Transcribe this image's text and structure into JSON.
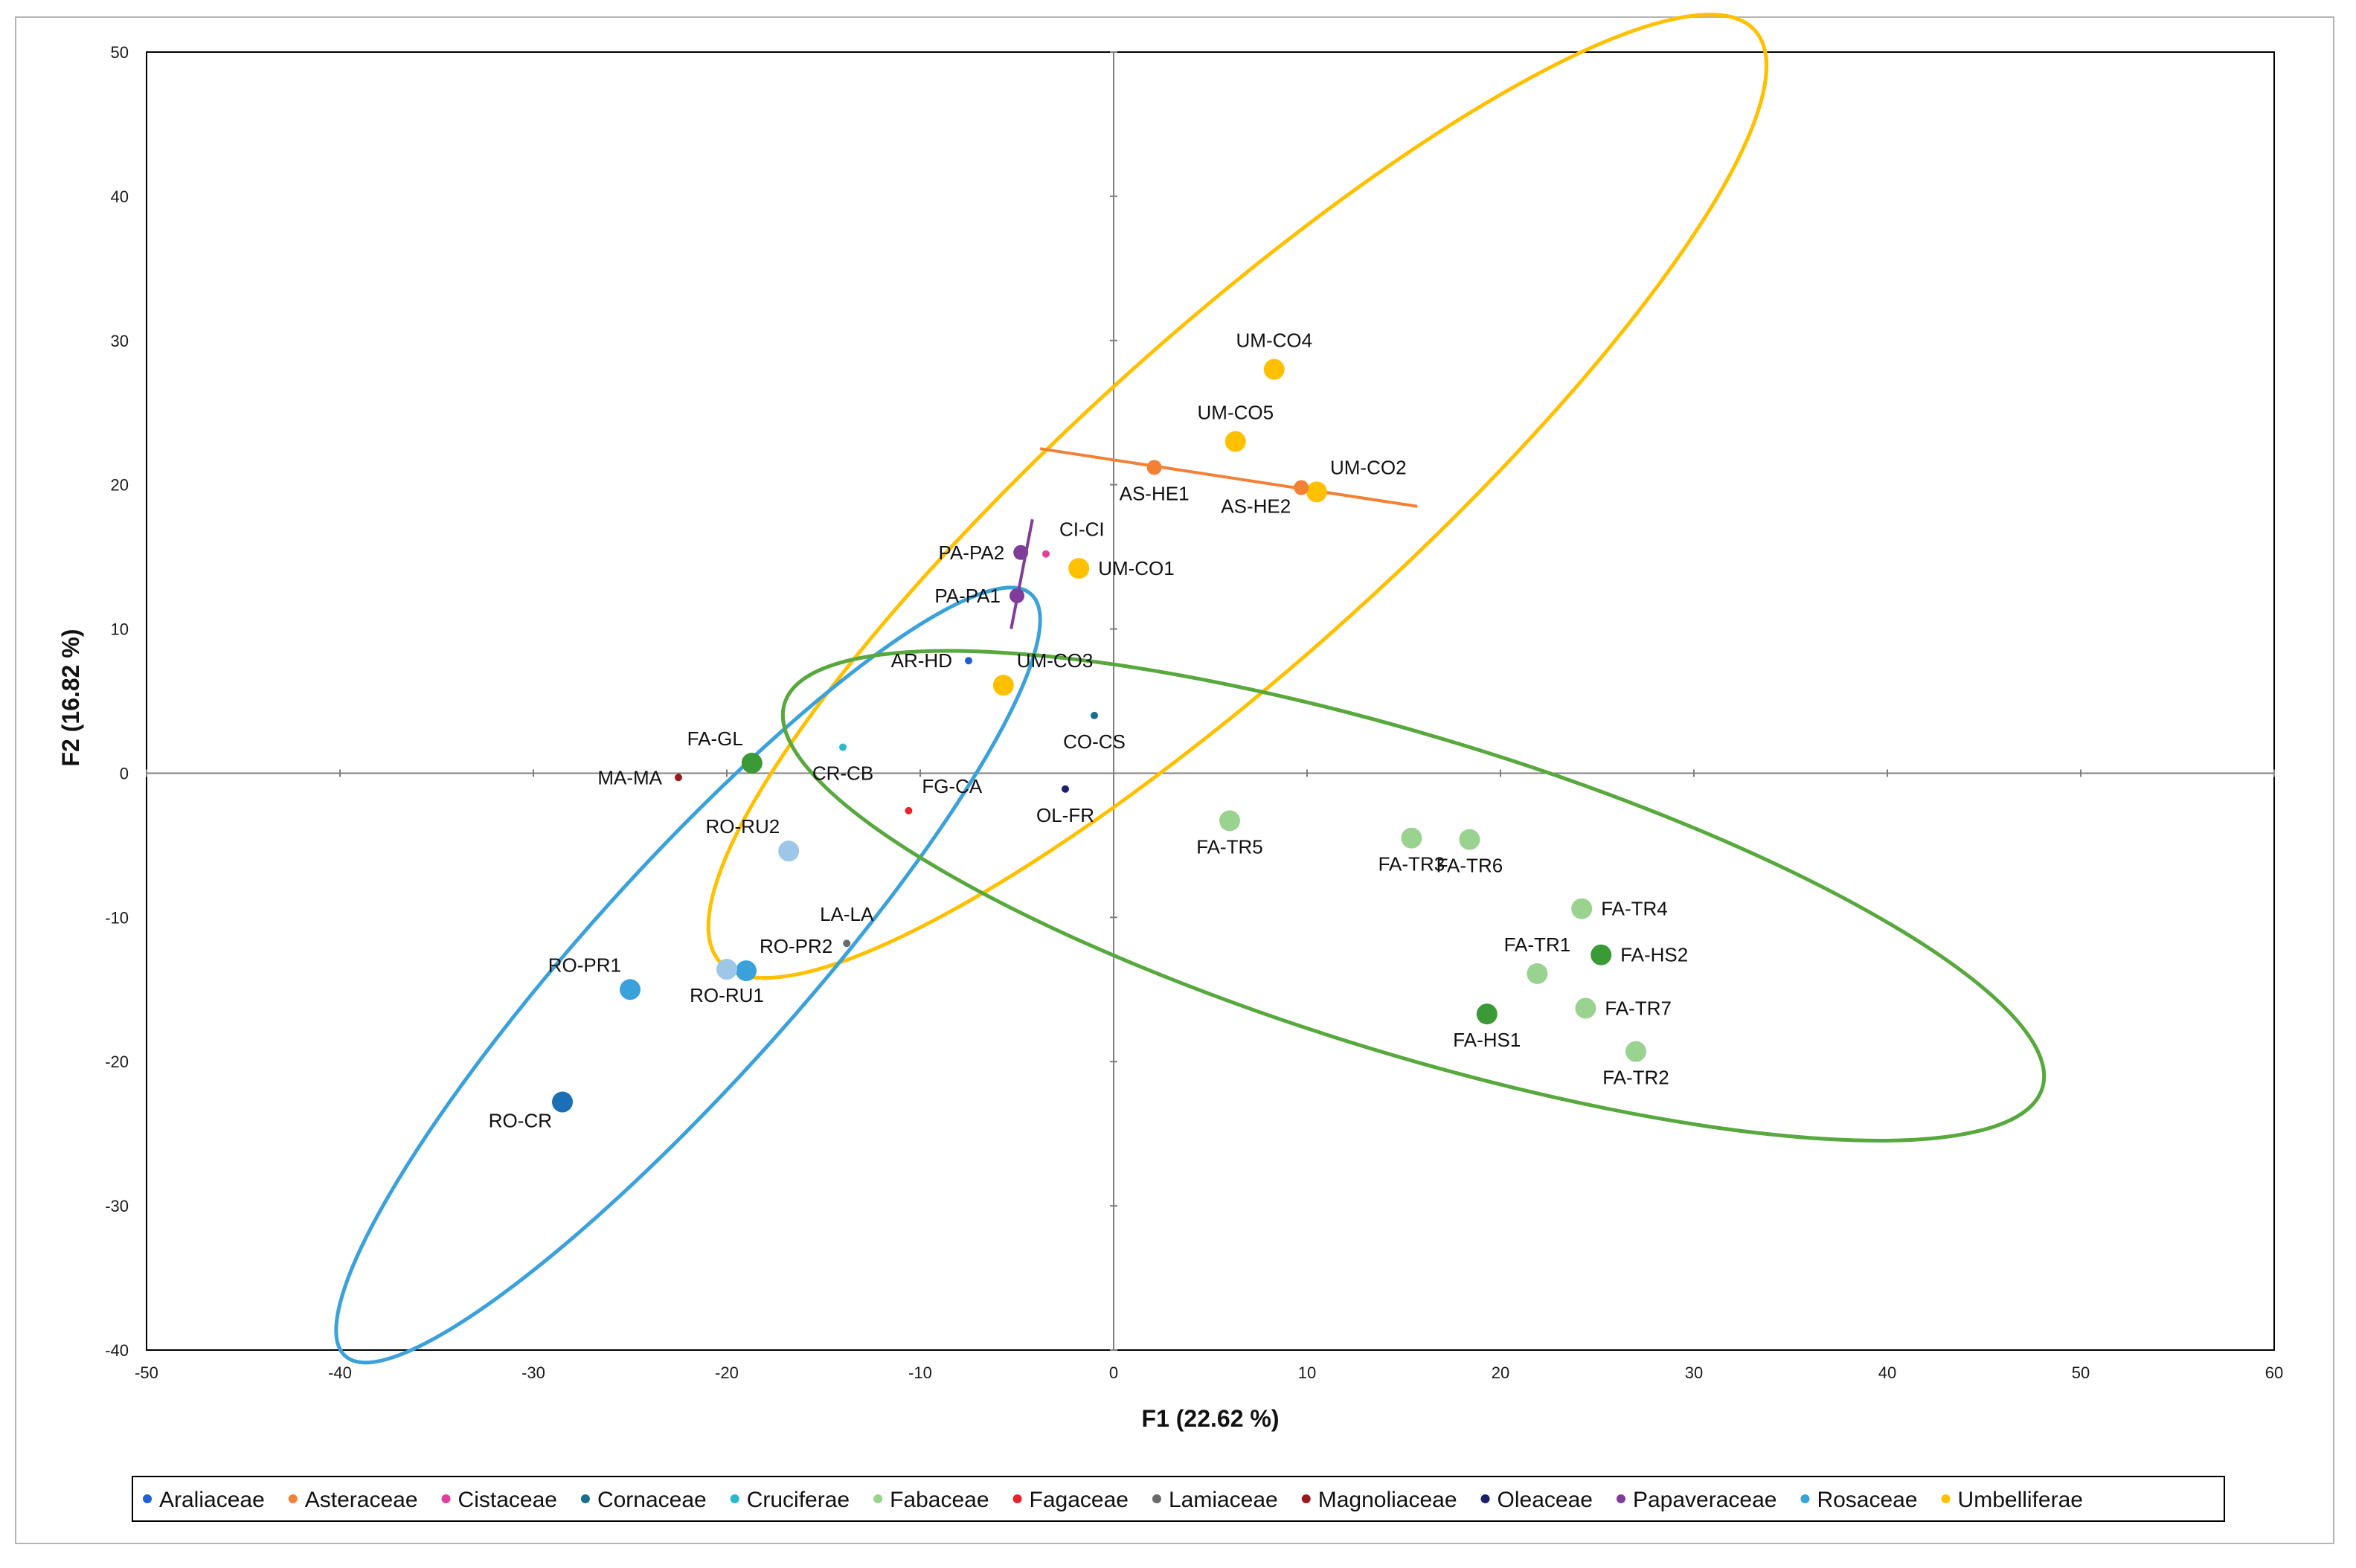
{
  "chart_data": {
    "type": "scatter",
    "title": "",
    "xlabel": "F1 (22.62 %)",
    "ylabel": "F2 (16.82 %)",
    "xlim": [
      -50,
      60
    ],
    "ylim": [
      -40,
      50
    ],
    "xticks": [
      -50,
      -40,
      -30,
      -20,
      -10,
      0,
      10,
      20,
      30,
      40,
      50,
      60
    ],
    "yticks": [
      -40,
      -30,
      -20,
      -10,
      0,
      10,
      20,
      30,
      40,
      50
    ],
    "legend_position": "bottom",
    "families": [
      {
        "name": "Araliaceae",
        "color": "#1f5fd6"
      },
      {
        "name": "Asteraceae",
        "color": "#f28035"
      },
      {
        "name": "Cistaceae",
        "color": "#e0409a"
      },
      {
        "name": "Cornaceae",
        "color": "#176f8c"
      },
      {
        "name": "Cruciferae",
        "color": "#2ab8cf"
      },
      {
        "name": "Fabaceae",
        "color": "#9ad28f"
      },
      {
        "name": "Fagaceae",
        "color": "#e8232b"
      },
      {
        "name": "Lamiaceae",
        "color": "#6b6b6b"
      },
      {
        "name": "Magnoliaceae",
        "color": "#9c1a1f"
      },
      {
        "name": "Oleaceae",
        "color": "#1b1f6e"
      },
      {
        "name": "Papaveraceae",
        "color": "#7f3c99"
      },
      {
        "name": "Rosaceae",
        "color": "#3aa1db"
      },
      {
        "name": "Umbelliferae",
        "color": "#ffc000"
      }
    ],
    "points": [
      {
        "label": "UM-CO4",
        "x": 8.3,
        "y": 28.0,
        "family": "Umbelliferae",
        "size": "large",
        "color": "#ffc000",
        "label_pos": "above"
      },
      {
        "label": "UM-CO5",
        "x": 6.3,
        "y": 23.0,
        "family": "Umbelliferae",
        "size": "large",
        "color": "#ffc000",
        "label_pos": "above"
      },
      {
        "label": "UM-CO2",
        "x": 10.5,
        "y": 19.5,
        "family": "Umbelliferae",
        "size": "large",
        "color": "#ffc000",
        "label_pos": "above-right"
      },
      {
        "label": "UM-CO1",
        "x": -1.8,
        "y": 14.2,
        "family": "Umbelliferae",
        "size": "large",
        "color": "#ffc000",
        "label_pos": "right"
      },
      {
        "label": "UM-CO3",
        "x": -5.7,
        "y": 6.1,
        "family": "Umbelliferae",
        "size": "large",
        "color": "#ffc000",
        "label_pos": "above-right"
      },
      {
        "label": "AS-HE1",
        "x": 2.1,
        "y": 21.2,
        "family": "Asteraceae",
        "size": "medium",
        "color": "#f28035",
        "label_pos": "below"
      },
      {
        "label": "AS-HE2",
        "x": 9.7,
        "y": 19.8,
        "family": "Asteraceae",
        "size": "medium",
        "color": "#f28035",
        "label_pos": "below-left"
      },
      {
        "label": "CI-CI",
        "x": -3.5,
        "y": 15.2,
        "family": "Cistaceae",
        "size": "small",
        "color": "#e0409a",
        "label_pos": "above-right"
      },
      {
        "label": "PA-PA2",
        "x": -4.8,
        "y": 15.3,
        "family": "Papaveraceae",
        "size": "medium",
        "color": "#7f3c99",
        "label_pos": "left"
      },
      {
        "label": "PA-PA1",
        "x": -5.0,
        "y": 12.3,
        "family": "Papaveraceae",
        "size": "medium",
        "color": "#7f3c99",
        "label_pos": "left"
      },
      {
        "label": "AR-HD",
        "x": -7.5,
        "y": 7.8,
        "family": "Araliaceae",
        "size": "small",
        "color": "#1f5fd6",
        "label_pos": "left"
      },
      {
        "label": "CO-CS",
        "x": -1.0,
        "y": 4.0,
        "family": "Cornaceae",
        "size": "small",
        "color": "#176f8c",
        "label_pos": "below"
      },
      {
        "label": "FA-GL",
        "x": -18.7,
        "y": 0.7,
        "family": "Fabaceae",
        "size": "large",
        "color": "#3a9a36",
        "label_pos": "above-left"
      },
      {
        "label": "CR-CB",
        "x": -14.0,
        "y": 1.8,
        "family": "Cruciferae",
        "size": "small",
        "color": "#2ab8cf",
        "label_pos": "below"
      },
      {
        "label": "MA-MA",
        "x": -22.5,
        "y": -0.3,
        "family": "Magnoliaceae",
        "size": "small",
        "color": "#9c1a1f",
        "label_pos": "left"
      },
      {
        "label": "FG-CA",
        "x": -10.6,
        "y": -2.6,
        "family": "Fagaceae",
        "size": "small",
        "color": "#e8232b",
        "label_pos": "above-right"
      },
      {
        "label": "OL-FR",
        "x": -2.5,
        "y": -1.1,
        "family": "Oleaceae",
        "size": "small",
        "color": "#1b1f6e",
        "label_pos": "below"
      },
      {
        "label": "RO-RU2",
        "x": -16.8,
        "y": -5.4,
        "family": "Rosaceae",
        "size": "large",
        "color": "#9dc6e8",
        "label_pos": "above-left"
      },
      {
        "label": "LA-LA",
        "x": -13.8,
        "y": -11.8,
        "family": "Lamiaceae",
        "size": "small",
        "color": "#6b6b6b",
        "label_pos": "above"
      },
      {
        "label": "RO-PR2",
        "x": -19.0,
        "y": -13.7,
        "family": "Rosaceae",
        "size": "large",
        "color": "#3aa1db",
        "label_pos": "above-right"
      },
      {
        "label": "RO-RU1",
        "x": -20.0,
        "y": -13.6,
        "family": "Rosaceae",
        "size": "large",
        "color": "#9dc6e8",
        "label_pos": "below"
      },
      {
        "label": "RO-PR1",
        "x": -25.0,
        "y": -15.0,
        "family": "Rosaceae",
        "size": "large",
        "color": "#3aa1db",
        "label_pos": "above-left"
      },
      {
        "label": "RO-CR",
        "x": -28.5,
        "y": -22.8,
        "family": "Rosaceae",
        "size": "large",
        "color": "#1b6fb5",
        "label_pos": "below-left"
      },
      {
        "label": "FA-TR5",
        "x": 6.0,
        "y": -3.3,
        "family": "Fabaceae",
        "size": "large",
        "color": "#9ad28f",
        "label_pos": "below"
      },
      {
        "label": "FA-TR3",
        "x": 15.4,
        "y": -4.5,
        "family": "Fabaceae",
        "size": "large",
        "color": "#9ad28f",
        "label_pos": "below"
      },
      {
        "label": "FA-TR6",
        "x": 18.4,
        "y": -4.6,
        "family": "Fabaceae",
        "size": "large",
        "color": "#9ad28f",
        "label_pos": "below"
      },
      {
        "label": "FA-TR4",
        "x": 24.2,
        "y": -9.4,
        "family": "Fabaceae",
        "size": "large",
        "color": "#9ad28f",
        "label_pos": "right"
      },
      {
        "label": "FA-TR1",
        "x": 21.9,
        "y": -13.9,
        "family": "Fabaceae",
        "size": "large",
        "color": "#9ad28f",
        "label_pos": "above"
      },
      {
        "label": "FA-HS2",
        "x": 25.2,
        "y": -12.6,
        "family": "Fabaceae",
        "size": "large",
        "color": "#3a9a36",
        "label_pos": "right"
      },
      {
        "label": "FA-TR7",
        "x": 24.4,
        "y": -16.3,
        "family": "Fabaceae",
        "size": "large",
        "color": "#9ad28f",
        "label_pos": "right"
      },
      {
        "label": "FA-HS1",
        "x": 19.3,
        "y": -16.7,
        "family": "Fabaceae",
        "size": "large",
        "color": "#3a9a36",
        "label_pos": "below"
      },
      {
        "label": "FA-TR2",
        "x": 27.0,
        "y": -19.3,
        "family": "Fabaceae",
        "size": "large",
        "color": "#9ad28f",
        "label_pos": "below"
      }
    ],
    "ellipses": [
      {
        "name": "Umbelliferae",
        "color": "#ffc000",
        "cx": 6.4,
        "cy": 19.2,
        "rx": 36.0,
        "ry": 8.5,
        "angle": 42
      },
      {
        "name": "Rosaceae",
        "color": "#3aa1db",
        "cx": -22.0,
        "cy": -14.0,
        "rx": 26.5,
        "ry": 5.5,
        "angle": 48
      },
      {
        "name": "Fabaceae",
        "color": "#57a83d",
        "cx": 15.5,
        "cy": -8.5,
        "rx": 34.0,
        "ry": 8.2,
        "angle": -17
      }
    ],
    "segments": [
      {
        "name": "Asteraceae",
        "color": "#f28035",
        "x1": -3.8,
        "y1": 22.5,
        "x2": 15.7,
        "y2": 18.5
      },
      {
        "name": "Papaveraceae",
        "color": "#7f3c99",
        "x1": -4.2,
        "y1": 17.6,
        "x2": -5.3,
        "y2": 10.0
      }
    ]
  }
}
